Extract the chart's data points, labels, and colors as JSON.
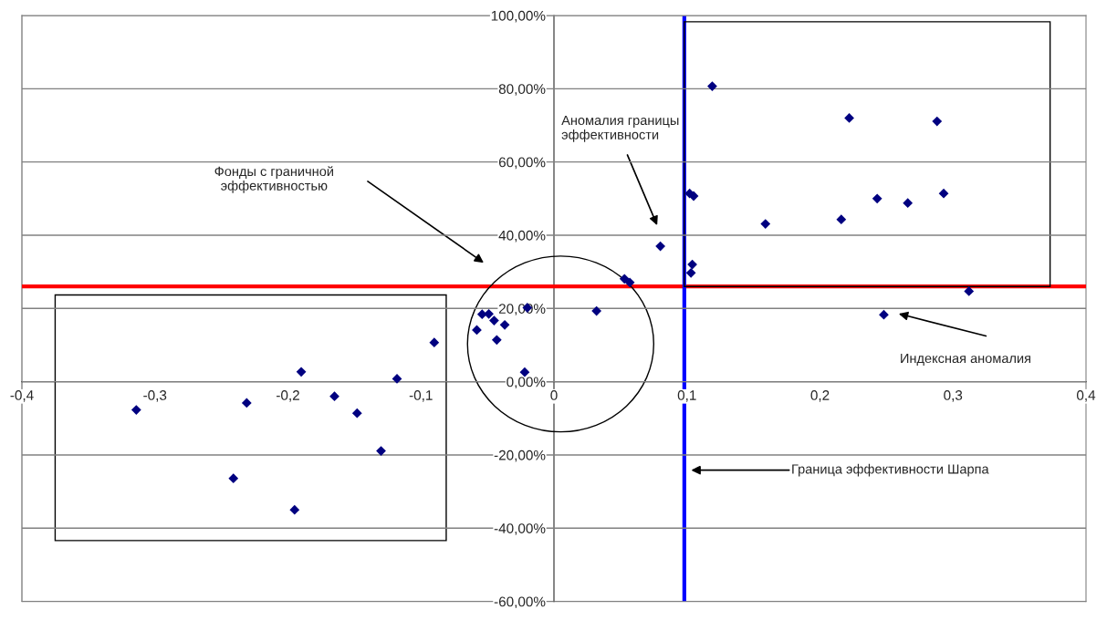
{
  "chart_data": {
    "type": "scatter",
    "x": [
      -0.314,
      -0.231,
      -0.241,
      -0.19,
      -0.195,
      -0.165,
      -0.148,
      -0.13,
      -0.118,
      -0.09,
      -0.058,
      -0.054,
      -0.049,
      -0.045,
      -0.037,
      -0.043,
      -0.02,
      -0.022,
      0.032,
      0.053,
      0.057,
      0.08,
      0.102,
      0.105,
      0.104,
      0.103,
      0.119,
      0.159,
      0.222,
      0.288,
      0.216,
      0.243,
      0.266,
      0.293,
      0.312,
      0.248
    ],
    "values": [
      -7.7,
      -5.8,
      -26.4,
      2.7,
      -35,
      -4.0,
      -8.6,
      -18.9,
      0.8,
      10.7,
      14.1,
      18.4,
      18.5,
      16.7,
      15.5,
      11.4,
      20.2,
      2.6,
      19.3,
      28.1,
      27.1,
      37.0,
      51.4,
      50.7,
      32.0,
      29.7,
      80.7,
      43.1,
      72.0,
      71.1,
      44.3,
      50.0,
      48.8,
      51.4,
      24.7,
      18.3
    ],
    "color": "#000080",
    "marker": "diamond",
    "xlim": [
      -0.4,
      0.4
    ],
    "xticks": [
      {
        "value": -0.4,
        "label": "-0,4"
      },
      {
        "value": -0.3,
        "label": "-0,3"
      },
      {
        "value": -0.2,
        "label": "-0,2"
      },
      {
        "value": -0.1,
        "label": "-0,1"
      },
      0,
      {
        "value": 0.1,
        "label": "0,1"
      },
      {
        "value": 0.2,
        "label": "0,2"
      },
      {
        "value": 0.3,
        "label": "0,3"
      },
      {
        "value": 0.4,
        "label": "0,4"
      }
    ],
    "ylim": [
      -60,
      100
    ],
    "yticks": [
      {
        "value": -60,
        "label": "-60,00%"
      },
      {
        "value": -40,
        "label": "-40,00%"
      },
      {
        "value": -20,
        "label": "-20,00%"
      },
      {
        "value": 0,
        "label": "0,00%"
      },
      {
        "value": 20,
        "label": "20,00%"
      },
      {
        "value": 40,
        "label": "40,00%"
      },
      {
        "value": 60,
        "label": "60,00%"
      },
      {
        "value": 80,
        "label": "80,00%"
      },
      {
        "value": 100,
        "label": "100,00%"
      }
    ],
    "grid": "y",
    "ref_lines": [
      {
        "axis": "y",
        "value": 26,
        "color": "#ff0000"
      },
      {
        "axis": "x",
        "value": 0.098,
        "color": "#0000ff"
      }
    ],
    "annotations": [
      "Фонды с граничной\nэффективностью",
      "Аномалия границы\nэффективности",
      "Индексная аномалия",
      "Граница эффективности Шарпа"
    ]
  }
}
